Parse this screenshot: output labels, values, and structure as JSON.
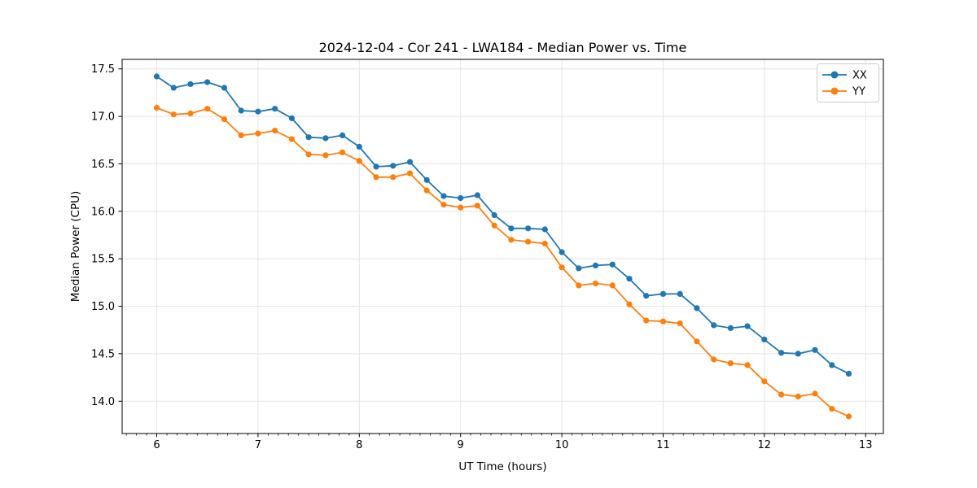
{
  "chart_data": {
    "type": "line",
    "title": "2024-12-04 - Cor 241 - LWA184 - Median Power vs. Time",
    "xlabel": "UT Time (hours)",
    "ylabel": "Median Power (CPU)",
    "x": [
      6.0,
      6.1667,
      6.3333,
      6.5,
      6.6667,
      6.8333,
      7.0,
      7.1667,
      7.3333,
      7.5,
      7.6667,
      7.8333,
      8.0,
      8.1667,
      8.3333,
      8.5,
      8.6667,
      8.8333,
      9.0,
      9.1667,
      9.3333,
      9.5,
      9.6667,
      9.8333,
      10.0,
      10.1667,
      10.3333,
      10.5,
      10.6667,
      10.8333,
      11.0,
      11.1667,
      11.3333,
      11.5,
      11.6667,
      11.8333,
      12.0,
      12.1667,
      12.3333,
      12.5,
      12.6667,
      12.8333
    ],
    "series": [
      {
        "name": "XX",
        "color": "#1f77b4",
        "values": [
          17.42,
          17.3,
          17.34,
          17.36,
          17.3,
          17.06,
          17.05,
          17.08,
          16.98,
          16.78,
          16.77,
          16.8,
          16.68,
          16.47,
          16.48,
          16.52,
          16.33,
          16.16,
          16.14,
          16.17,
          15.96,
          15.82,
          15.82,
          15.81,
          15.57,
          15.4,
          15.43,
          15.44,
          15.29,
          15.11,
          15.13,
          15.13,
          14.98,
          14.8,
          14.77,
          14.79,
          14.65,
          14.51,
          14.5,
          14.54,
          14.38,
          14.29
        ]
      },
      {
        "name": "YY",
        "color": "#ff7f0e",
        "values": [
          17.09,
          17.02,
          17.03,
          17.08,
          16.97,
          16.8,
          16.82,
          16.85,
          16.76,
          16.6,
          16.59,
          16.62,
          16.53,
          16.36,
          16.36,
          16.4,
          16.22,
          16.07,
          16.04,
          16.06,
          15.85,
          15.7,
          15.68,
          15.66,
          15.41,
          15.22,
          15.24,
          15.22,
          15.02,
          14.85,
          14.84,
          14.82,
          14.63,
          14.44,
          14.4,
          14.38,
          14.21,
          14.07,
          14.05,
          14.08,
          13.92,
          13.84
        ]
      }
    ],
    "xlim": [
      5.658,
      13.175
    ],
    "ylim": [
      13.66,
      17.6
    ],
    "xticks": [
      6,
      7,
      8,
      9,
      10,
      11,
      12,
      13
    ],
    "yticks": [
      14.0,
      14.5,
      15.0,
      15.5,
      16.0,
      16.5,
      17.0,
      17.5
    ],
    "xtick_labels": [
      "6",
      "7",
      "8",
      "9",
      "10",
      "11",
      "12",
      "13"
    ],
    "ytick_labels": [
      "14.0",
      "14.5",
      "15.0",
      "15.5",
      "16.0",
      "16.5",
      "17.0",
      "17.5"
    ],
    "minor_xtick_step": 0.1,
    "grid": true,
    "legend": {
      "position": "upper right",
      "entries": [
        "XX",
        "YY"
      ]
    },
    "colors": {
      "background": "#ffffff",
      "grid": "#e3e3e3",
      "spine": "#000000",
      "tick": "#000000",
      "legend_border": "#cccccc"
    }
  }
}
